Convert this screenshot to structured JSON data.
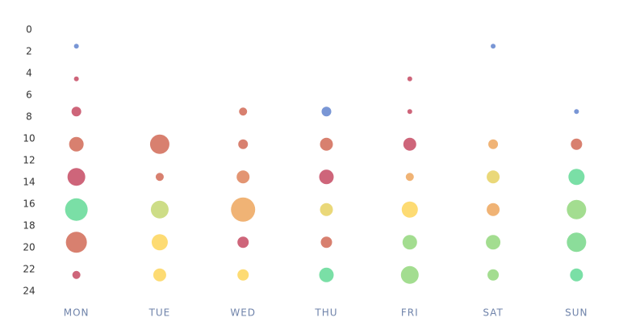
{
  "chart_data": {
    "type": "scatter",
    "categories": [
      "MON",
      "TUE",
      "WED",
      "THU",
      "FRI",
      "SAT",
      "SUN"
    ],
    "ylim": [
      0,
      24
    ],
    "yticks": [
      0,
      2,
      4,
      6,
      8,
      10,
      12,
      14,
      16,
      18,
      20,
      22,
      24
    ],
    "y_inverted": true,
    "x": [
      "MON",
      "MON",
      "MON",
      "MON",
      "MON",
      "MON",
      "MON",
      "MON",
      "TUE",
      "TUE",
      "TUE",
      "TUE",
      "TUE",
      "WED",
      "WED",
      "WED",
      "WED",
      "WED",
      "WED",
      "THU",
      "THU",
      "THU",
      "THU",
      "THU",
      "THU",
      "FRI",
      "FRI",
      "FRI",
      "FRI",
      "FRI",
      "FRI",
      "FRI",
      "SAT",
      "SAT",
      "SAT",
      "SAT",
      "SAT",
      "SAT",
      "SUN",
      "SUN",
      "SUN",
      "SUN",
      "SUN",
      "SUN"
    ],
    "y": [
      1.5,
      4.5,
      7.5,
      10.5,
      13.5,
      16.5,
      19.5,
      22.5,
      10.5,
      13.5,
      16.5,
      19.5,
      22.5,
      7.5,
      10.5,
      13.5,
      16.5,
      19.5,
      22.5,
      7.5,
      10.5,
      13.5,
      16.5,
      19.5,
      22.5,
      4.5,
      7.5,
      10.5,
      13.5,
      16.5,
      19.5,
      22.5,
      1.5,
      10.5,
      13.5,
      16.5,
      19.5,
      22.5,
      7.5,
      10.5,
      13.5,
      16.5,
      19.5,
      22.5
    ],
    "sizes": [
      3,
      3,
      6,
      9,
      11,
      14,
      13,
      5,
      12,
      5,
      11,
      10,
      8,
      5,
      6,
      8,
      15,
      7,
      7,
      6,
      8,
      9,
      8,
      7,
      9,
      3,
      3,
      8,
      5,
      10,
      9,
      11,
      3,
      6,
      8,
      8,
      9,
      7,
      3,
      7,
      10,
      12,
      12,
      8
    ],
    "colors": [
      "#6a8bd0",
      "#c9546c",
      "#c9546c",
      "#d4725f",
      "#c9546c",
      "#6bdc9c",
      "#d4725f",
      "#c9546c",
      "#d4725f",
      "#d4725f",
      "#c8d97a",
      "#fdd764",
      "#fdd764",
      "#d4725f",
      "#d4725f",
      "#e08a64",
      "#eeab66",
      "#c9546c",
      "#fdd764",
      "#6a8bd0",
      "#d4725f",
      "#c9546c",
      "#e8d46a",
      "#d4725f",
      "#6bdc9c",
      "#c9546c",
      "#c9546c",
      "#c9546c",
      "#eeab66",
      "#fdd764",
      "#99d984",
      "#99d984",
      "#6a8bd0",
      "#eeab66",
      "#e8d46a",
      "#eeab66",
      "#99d984",
      "#99d984",
      "#6a8bd0",
      "#d4725f",
      "#6bdc9c",
      "#99d984",
      "#7ed98f",
      "#6bdc9c"
    ]
  }
}
